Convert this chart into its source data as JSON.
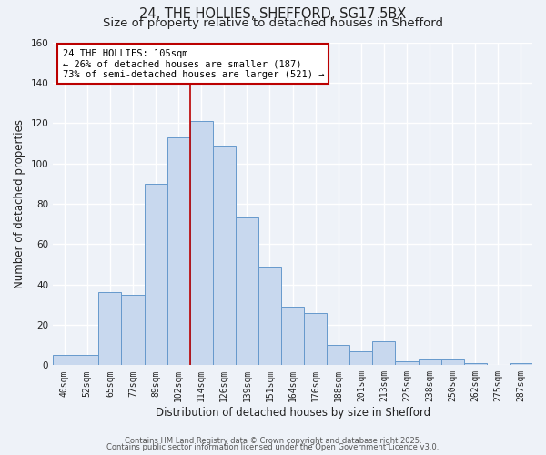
{
  "title": "24, THE HOLLIES, SHEFFORD, SG17 5BX",
  "subtitle": "Size of property relative to detached houses in Shefford",
  "xlabel": "Distribution of detached houses by size in Shefford",
  "ylabel": "Number of detached properties",
  "bar_labels": [
    "40sqm",
    "52sqm",
    "65sqm",
    "77sqm",
    "89sqm",
    "102sqm",
    "114sqm",
    "126sqm",
    "139sqm",
    "151sqm",
    "164sqm",
    "176sqm",
    "188sqm",
    "201sqm",
    "213sqm",
    "225sqm",
    "238sqm",
    "250sqm",
    "262sqm",
    "275sqm",
    "287sqm"
  ],
  "bar_values": [
    5,
    5,
    36,
    35,
    90,
    113,
    121,
    109,
    73,
    49,
    29,
    26,
    10,
    7,
    12,
    2,
    3,
    3,
    1,
    0,
    1
  ],
  "bar_color": "#c8d8ee",
  "bar_edge_color": "#6699cc",
  "vline_x_index": 5.5,
  "vline_color": "#bb0000",
  "annotation_title": "24 THE HOLLIES: 105sqm",
  "annotation_line1": "← 26% of detached houses are smaller (187)",
  "annotation_line2": "73% of semi-detached houses are larger (521) →",
  "annotation_box_color": "#ffffff",
  "annotation_box_edge": "#bb0000",
  "ylim": [
    0,
    160
  ],
  "yticks": [
    0,
    20,
    40,
    60,
    80,
    100,
    120,
    140,
    160
  ],
  "footer1": "Contains HM Land Registry data © Crown copyright and database right 2025.",
  "footer2": "Contains public sector information licensed under the Open Government Licence v3.0.",
  "bg_color": "#eef2f8",
  "grid_color": "#ffffff",
  "title_fontsize": 10.5,
  "subtitle_fontsize": 9.5,
  "tick_fontsize": 7,
  "ylabel_fontsize": 8.5,
  "xlabel_fontsize": 8.5,
  "annotation_fontsize": 7.5,
  "footer_fontsize": 6
}
